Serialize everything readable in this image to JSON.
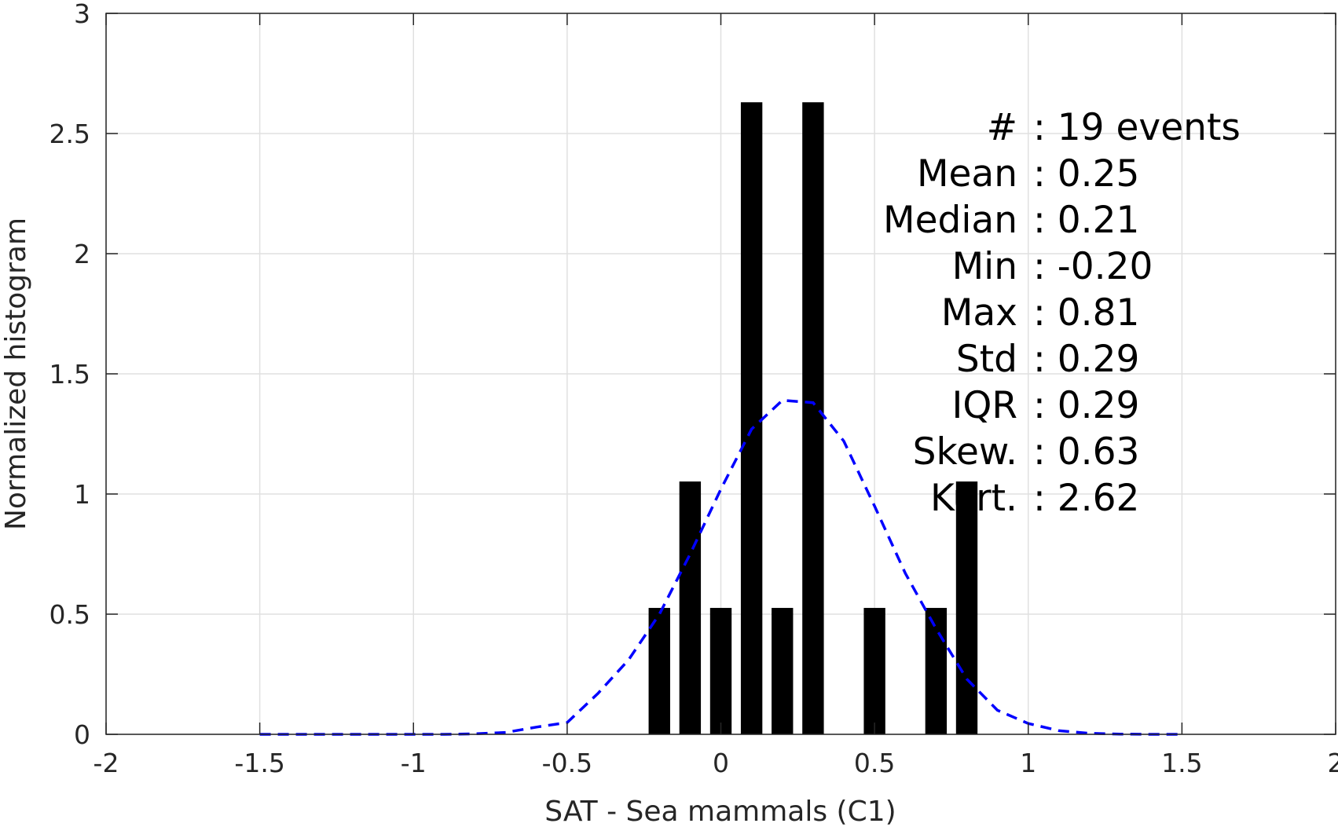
{
  "chart_data": {
    "type": "bar",
    "xlabel": "SAT - Sea mammals (C1)",
    "ylabel": "Normalized histogram",
    "xlim": [
      -2,
      2
    ],
    "ylim": [
      0,
      3
    ],
    "xticks": [
      "-2",
      "-1.5",
      "-1",
      "-0.5",
      "0",
      "0.5",
      "1",
      "1.5",
      "2"
    ],
    "yticks": [
      "0",
      "0.5",
      "1",
      "1.5",
      "2",
      "2.5",
      "3"
    ],
    "grid": true,
    "bar_width": 0.07,
    "bars": [
      {
        "x": -0.2,
        "y": 0.526
      },
      {
        "x": -0.1,
        "y": 1.052
      },
      {
        "x": 0.0,
        "y": 0.526
      },
      {
        "x": 0.1,
        "y": 2.63
      },
      {
        "x": 0.2,
        "y": 0.526
      },
      {
        "x": 0.3,
        "y": 2.63
      },
      {
        "x": 0.5,
        "y": 0.526
      },
      {
        "x": 0.7,
        "y": 0.526
      },
      {
        "x": 0.8,
        "y": 1.052
      }
    ],
    "series": [
      {
        "type": "line",
        "style": "dashed",
        "x": [
          -1.5,
          -1.4,
          -1.3,
          -1.2,
          -1.1,
          -1.0,
          -0.9,
          -0.8,
          -0.7,
          -0.6,
          -0.5,
          -0.4,
          -0.3,
          -0.2,
          -0.1,
          0.0,
          0.1,
          0.2,
          0.3,
          0.4,
          0.5,
          0.6,
          0.7,
          0.8,
          0.9,
          1.0,
          1.1,
          1.2,
          1.3,
          1.4,
          1.5
        ],
        "y": [
          0.0,
          0.0,
          0.0,
          0.0,
          0.0,
          0.0,
          0.0,
          0.002,
          0.008,
          0.03,
          0.049,
          0.17,
          0.31,
          0.5,
          0.75,
          1.02,
          1.27,
          1.39,
          1.38,
          1.22,
          0.95,
          0.67,
          0.44,
          0.23,
          0.1,
          0.045,
          0.015,
          0.004,
          0.001,
          0.0,
          0.0
        ]
      }
    ],
    "annotations": [
      {
        "key": "#",
        "sep": " : ",
        "value": "19 events"
      },
      {
        "key": "Mean",
        "sep": " : ",
        "value": "0.25"
      },
      {
        "key": "Median",
        "sep": " : ",
        "value": "0.21"
      },
      {
        "key": "Min",
        "sep": " : ",
        "value": "-0.20"
      },
      {
        "key": "Max",
        "sep": " : ",
        "value": "0.81"
      },
      {
        "key": "Std",
        "sep": " : ",
        "value": "0.29"
      },
      {
        "key": "IQR",
        "sep": " : ",
        "value": "0.29"
      },
      {
        "key": "Skew.",
        "sep": " : ",
        "value": "0.63"
      },
      {
        "key": "Kurt.",
        "sep": " : ",
        "value": "2.62"
      }
    ],
    "colors": {
      "bars": "#000000",
      "curve": "#0000ff",
      "grid": "#e0e0e0",
      "axis": "#262626",
      "text": "#000000"
    }
  }
}
